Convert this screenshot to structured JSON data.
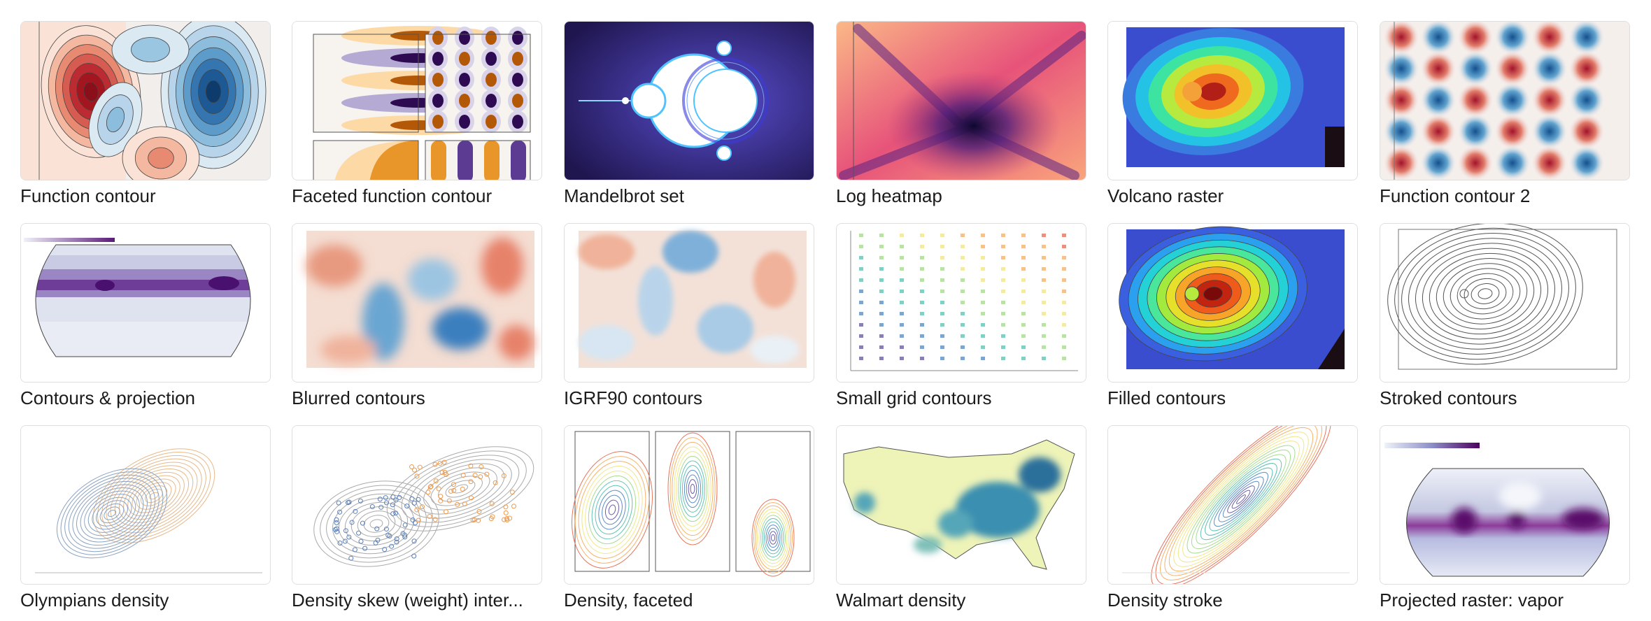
{
  "gallery": {
    "cards": [
      {
        "title": "Function contour",
        "art": "function-contour"
      },
      {
        "title": "Faceted function contour",
        "art": "faceted-contour"
      },
      {
        "title": "Mandelbrot set",
        "art": "mandelbrot"
      },
      {
        "title": "Log heatmap",
        "art": "log-heatmap"
      },
      {
        "title": "Volcano raster",
        "art": "volcano-raster"
      },
      {
        "title": "Function contour 2",
        "art": "checker-contour"
      },
      {
        "title": "Contours & projection",
        "art": "projection-contours"
      },
      {
        "title": "Blurred contours",
        "art": "blurred-contours"
      },
      {
        "title": "IGRF90 contours",
        "art": "igrf-contours"
      },
      {
        "title": "Small grid contours",
        "art": "small-grid"
      },
      {
        "title": "Filled contours",
        "art": "filled-contours"
      },
      {
        "title": "Stroked contours",
        "art": "stroked-contours"
      },
      {
        "title": "Olympians density",
        "art": "olympians-density"
      },
      {
        "title": "Density skew (weight) inter...",
        "art": "density-skew"
      },
      {
        "title": "Density, faceted",
        "art": "density-faceted"
      },
      {
        "title": "Walmart density",
        "art": "walmart-density"
      },
      {
        "title": "Density stroke",
        "art": "density-stroke"
      },
      {
        "title": "Projected raster: vapor",
        "art": "vapor-raster"
      }
    ]
  }
}
